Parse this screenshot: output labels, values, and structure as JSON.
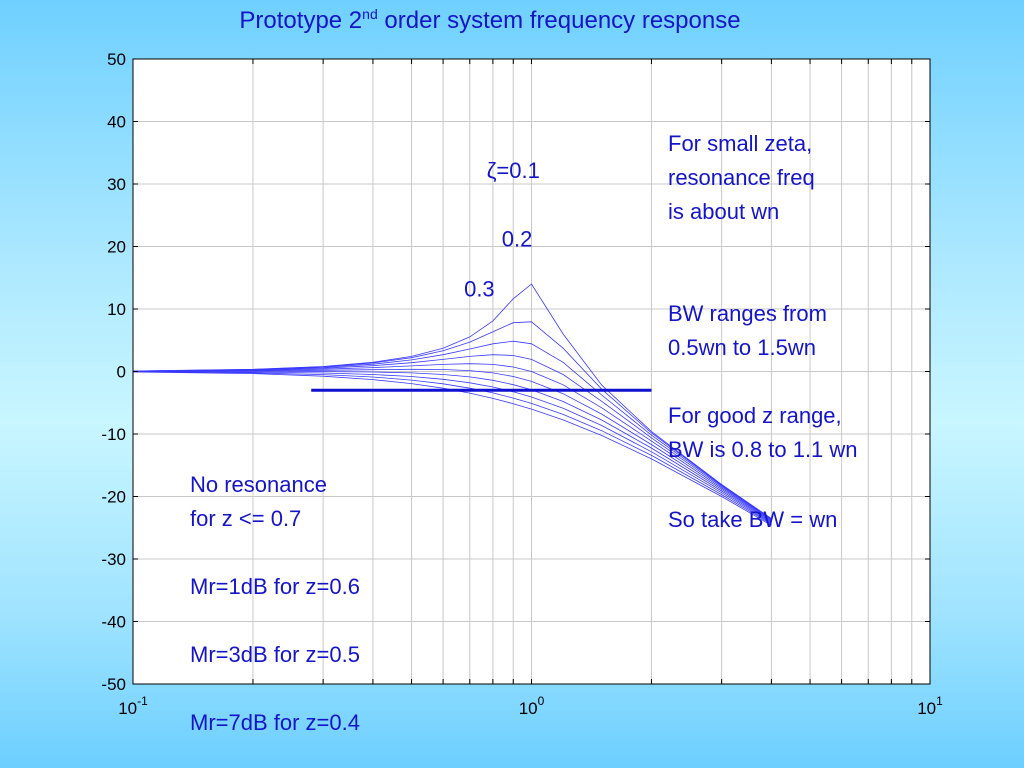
{
  "title": {
    "prefix": "Prototype 2",
    "sup": "nd",
    "suffix": " order system frequency response"
  },
  "colors": {
    "text": "#1414c8",
    "curve": "#3a3aff",
    "bandwidth_line": "#1010d0",
    "grid": "#c8c8c8"
  },
  "chart_data": {
    "type": "line",
    "x_scale": "log",
    "xlim": [
      0.1,
      10
    ],
    "ylim": [
      -50,
      50
    ],
    "x_tick_labels": [
      {
        "base": "10",
        "exp": "-1",
        "value": 0.1
      },
      {
        "base": "10",
        "exp": "0",
        "value": 1
      },
      {
        "base": "10",
        "exp": "1",
        "value": 10
      }
    ],
    "y_ticks": [
      50,
      40,
      30,
      20,
      10,
      0,
      -10,
      -20,
      -30,
      -40,
      -50
    ],
    "grid": true,
    "zeta_values": [
      0.1,
      0.2,
      0.3,
      0.4,
      0.5,
      0.6,
      0.7,
      0.8,
      0.9,
      1.0
    ],
    "omega_samples": [
      0.1,
      0.2,
      0.3,
      0.4,
      0.5,
      0.6,
      0.7,
      0.8,
      0.9,
      1.0,
      1.2,
      1.5,
      2.0,
      3.0,
      4.0
    ],
    "curve_labels": [
      {
        "text": "ζ=0.1",
        "x": 0.9,
        "y": 31
      },
      {
        "text": "0.2",
        "x": 0.92,
        "y": 20
      },
      {
        "text": "0.3",
        "x": 0.74,
        "y": 12
      }
    ],
    "bandwidth_line": {
      "x": [
        0.28,
        2.0
      ],
      "y": -3
    }
  },
  "notes": {
    "right1": "For small zeta,\nresonance freq\nis about wn",
    "right2": "BW ranges from\n0.5wn to 1.5wn",
    "right3": "For good z range,\nBW is 0.8 to 1.1 wn",
    "right4": "So take BW = wn",
    "left1": "No resonance\nfor z <= 0.7",
    "left2": "Mr=1dB for z=0.6",
    "left3": "Mr=3dB for z=0.5",
    "left4": "Mr=7dB for z=0.4"
  }
}
